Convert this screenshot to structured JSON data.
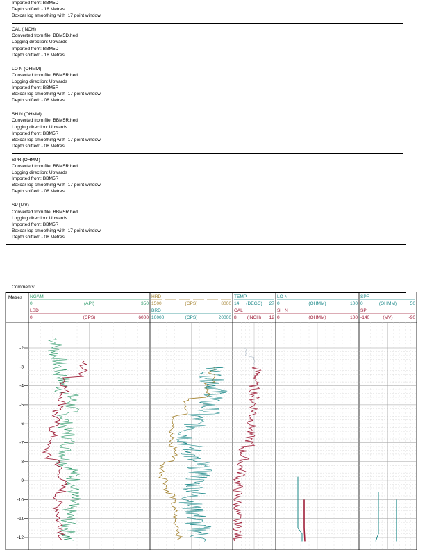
{
  "log_records": [
    {
      "title": "",
      "lines": [
        "Imported from: BBM5D",
        "Depth shifted: -.18 Metres",
        "Boxcar log smoothing with  17 point window."
      ]
    },
    {
      "title": "CAL (INCH)",
      "lines": [
        "Converted from file: BBM5D.hed",
        "Logging direction: Upwards",
        "Imported from: BBM5D",
        "Depth shifted: -.18 Metres"
      ]
    },
    {
      "title": "LO N (OHMM)",
      "lines": [
        "Converted from file: BBM5R.hed",
        "Logging direction: Upwards",
        "Imported from: BBM5R",
        "Boxcar log smoothing with  17 point window.",
        "Depth shifted: -.08 Metres"
      ]
    },
    {
      "title": "SH N (OHMM)",
      "lines": [
        "Converted from file: BBM5R.hed",
        "Logging direction: Upwards",
        "Imported from: BBM5R",
        "Boxcar log smoothing with  17 point window.",
        "Depth shifted: -.08 Metres"
      ]
    },
    {
      "title": "SPR (OHMM)",
      "lines": [
        "Converted from file: BBM5R.hed",
        "Logging direction: Upwards",
        "Imported from: BBM5R",
        "Boxcar log smoothing with  17 point window.",
        "Depth shifted: -.08 Metres"
      ]
    },
    {
      "title": "SP (MV)",
      "lines": [
        "Converted from file: BBM5R.hed",
        "Logging direction: Upwards",
        "Imported from: BBM5R",
        "Boxcar log smoothing with  17 point window.",
        "Depth shifted: -.08 Metres"
      ]
    }
  ],
  "comments_label": "Comments:",
  "log_plot": {
    "depth_header": "Metres",
    "depth_ticks": [
      "-2",
      "-3",
      "-4",
      "-5",
      "-6",
      "-7",
      "-8",
      "-9",
      "-10",
      "-11",
      "-12"
    ],
    "colors": {
      "green": "#2e9a6a",
      "red": "#a0203a",
      "olive": "#a8893a",
      "teal": "#1e8a8a"
    },
    "tracks": [
      {
        "curves": [
          {
            "name": "NGAM",
            "min": "0",
            "unit": "(API)",
            "max": "350",
            "color": "#2e9a6a"
          },
          {
            "name": "LSD",
            "min": "0",
            "unit": "(CPS)",
            "max": "6000",
            "color": "#a0203a"
          }
        ]
      },
      {
        "curves": [
          {
            "name": "HRD",
            "min": "1500",
            "unit": "(CPS)",
            "max": "8000",
            "color": "#a8893a"
          },
          {
            "name": "BRD",
            "min": "10000",
            "unit": "(CPS)",
            "max": "20000",
            "color": "#1e8a8a"
          }
        ]
      },
      {
        "curves": [
          {
            "name": "TEMP",
            "min": "14",
            "unit": "(DEGC)",
            "max": "27",
            "color": "#1e8a8a"
          },
          {
            "name": "CAL",
            "min": "8",
            "unit": "(INCH)",
            "max": "12",
            "color": "#a0203a"
          }
        ]
      },
      {
        "curves": [
          {
            "name": "LO N",
            "min": "0",
            "unit": "(OHMM)",
            "max": "100",
            "color": "#1e8a8a"
          },
          {
            "name": "SH N",
            "min": "0",
            "unit": "(OHMM)",
            "max": "100",
            "color": "#a0203a"
          }
        ]
      },
      {
        "curves": [
          {
            "name": "SPR",
            "min": "0",
            "unit": "(OHMM)",
            "max": "50",
            "color": "#1e8a8a"
          },
          {
            "name": "SP",
            "min": "-140",
            "unit": "(MV)",
            "max": "-90",
            "color": "#a0203a"
          }
        ]
      }
    ]
  }
}
